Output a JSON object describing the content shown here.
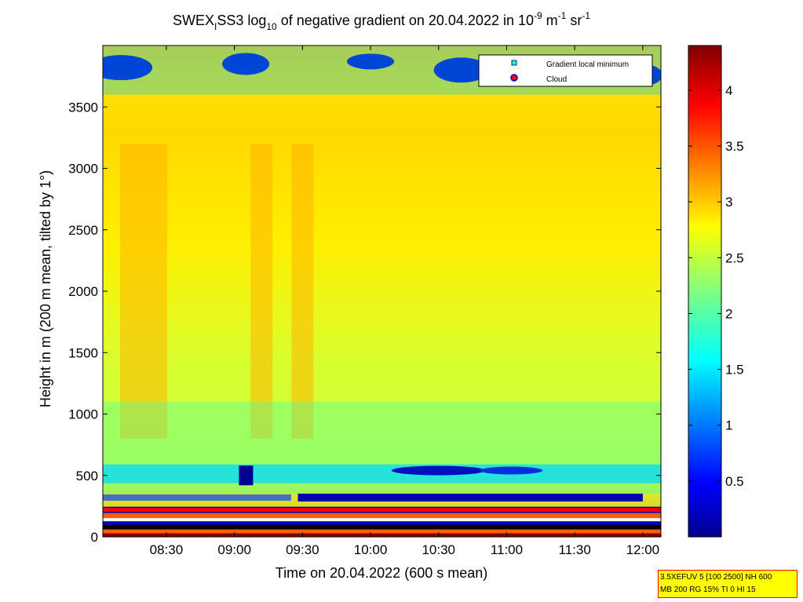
{
  "chart_data": {
    "type": "heatmap",
    "title": {
      "main_a": "SWEX",
      "main_sub_a": "I",
      "main_b": "SS3 log",
      "main_sub_b": "10",
      "main_c": " of negative gradient on 20.04.2022 in 10",
      "sup_1": "-9",
      "main_d": " m",
      "sup_2": "-1",
      "main_e": " sr",
      "sup_3": "-1"
    },
    "xlabel": "Time on 20.04.2022 (600 s mean)",
    "ylabel": "Height in m (200 m mean, tilted by 1°)",
    "x_ticks": [
      "08:30",
      "09:00",
      "09:30",
      "10:00",
      "10:30",
      "11:00",
      "11:30",
      "12:00"
    ],
    "x_tick_minutes": [
      510,
      540,
      570,
      600,
      630,
      660,
      690,
      720
    ],
    "xlim_minutes": [
      482,
      728
    ],
    "y_ticks": [
      0,
      500,
      1000,
      1500,
      2000,
      2500,
      3000,
      3500
    ],
    "ylim": [
      0,
      4000
    ],
    "colorbar": {
      "ticks": [
        0.5,
        1,
        1.5,
        2,
        2.5,
        3,
        3.5,
        4
      ],
      "range": [
        0,
        4.4
      ],
      "colormap": "jet"
    },
    "legend": {
      "placement": "top-right",
      "entries": [
        {
          "label": "Gradient local minimum",
          "marker": "square",
          "color": "#00ffff"
        },
        {
          "label": "Cloud",
          "marker": "circle",
          "color": "#ff0000"
        }
      ]
    },
    "features": {
      "lower_layer_height": 320,
      "upper_layer_height": 540,
      "cloud_line_height": 220,
      "near_ground_layer_height": 80
    }
  },
  "note": {
    "line1": "3.5XEFUV 5 [100 2500] NH 600",
    "line2": "MB 200 RG 15% TI 0 HI 15"
  }
}
